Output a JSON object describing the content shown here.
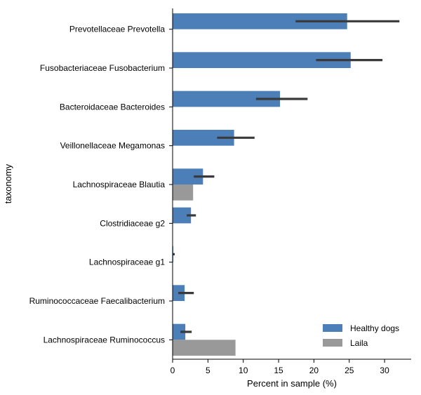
{
  "chart_data": {
    "type": "bar",
    "orientation": "horizontal",
    "xlabel": "Percent in sample (%)",
    "ylabel": "taxonomy",
    "xlim": [
      0,
      34
    ],
    "xticks": [
      0,
      5,
      10,
      15,
      20,
      25,
      30
    ],
    "categories": [
      "Prevotellaceae Prevotella",
      "Fusobacteriaceae Fusobacterium",
      "Bacteroidaceae Bacteroides",
      "Veillonellaceae Megamonas",
      "Lachnospiraceae Blautia",
      "Clostridiaceae g2",
      "Lachnospiraceae g1",
      "Ruminococcaceae Faecalibacterium",
      "Lachnospiraceae Ruminococcus"
    ],
    "series": [
      {
        "name": "Healthy dogs",
        "color": "#4c7fb8",
        "values": [
          24.7,
          25.2,
          15.2,
          8.7,
          4.3,
          2.6,
          0.1,
          1.7,
          1.8
        ],
        "error_low": [
          17.4,
          20.3,
          11.8,
          6.3,
          3.0,
          2.0,
          0.0,
          0.8,
          1.1
        ],
        "error_high": [
          32.1,
          29.7,
          19.1,
          11.6,
          5.9,
          3.3,
          0.3,
          3.0,
          2.7
        ]
      },
      {
        "name": "Laila",
        "color": "#999999",
        "values": [
          0,
          0,
          0,
          0,
          2.9,
          0,
          0,
          0,
          8.9
        ]
      }
    ],
    "legend_position": "bottom-right",
    "grid": false
  }
}
